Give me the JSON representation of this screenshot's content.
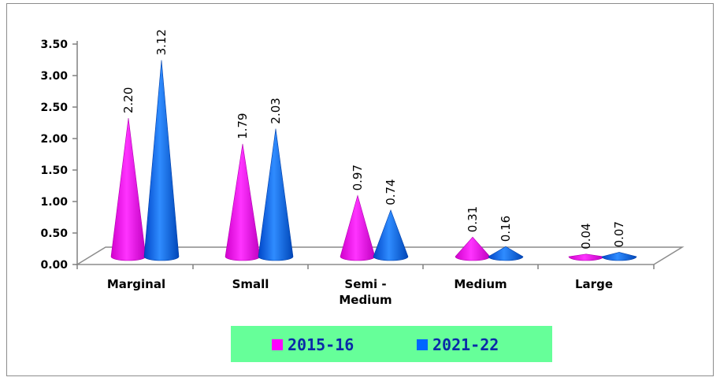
{
  "chart_data": {
    "type": "bar",
    "style": "3d-cone",
    "categories": [
      "Marginal",
      "Small",
      "Semi -\nMedium",
      "Medium",
      "Large"
    ],
    "series": [
      {
        "name": "2015-16",
        "color": "#ff00ff",
        "values": [
          2.2,
          1.79,
          0.97,
          0.31,
          0.04
        ],
        "labels": [
          "2.20",
          "1.79",
          "0.97",
          "0.31",
          "0.04"
        ]
      },
      {
        "name": "2021-22",
        "color": "#0066ff",
        "values": [
          3.12,
          2.03,
          0.74,
          0.16,
          0.07
        ],
        "labels": [
          "3.12",
          "2.03",
          "0.74",
          "0.16",
          "0.07"
        ]
      }
    ],
    "yticks": [
      "0.00",
      "0.50",
      "1.00",
      "1.50",
      "2.00",
      "2.50",
      "3.00",
      "3.50"
    ],
    "ylim": [
      0,
      3.5
    ],
    "grid": false,
    "legend": {
      "position": "bottom",
      "background": "#66ff99",
      "text_color": "#0a2aa8"
    }
  }
}
